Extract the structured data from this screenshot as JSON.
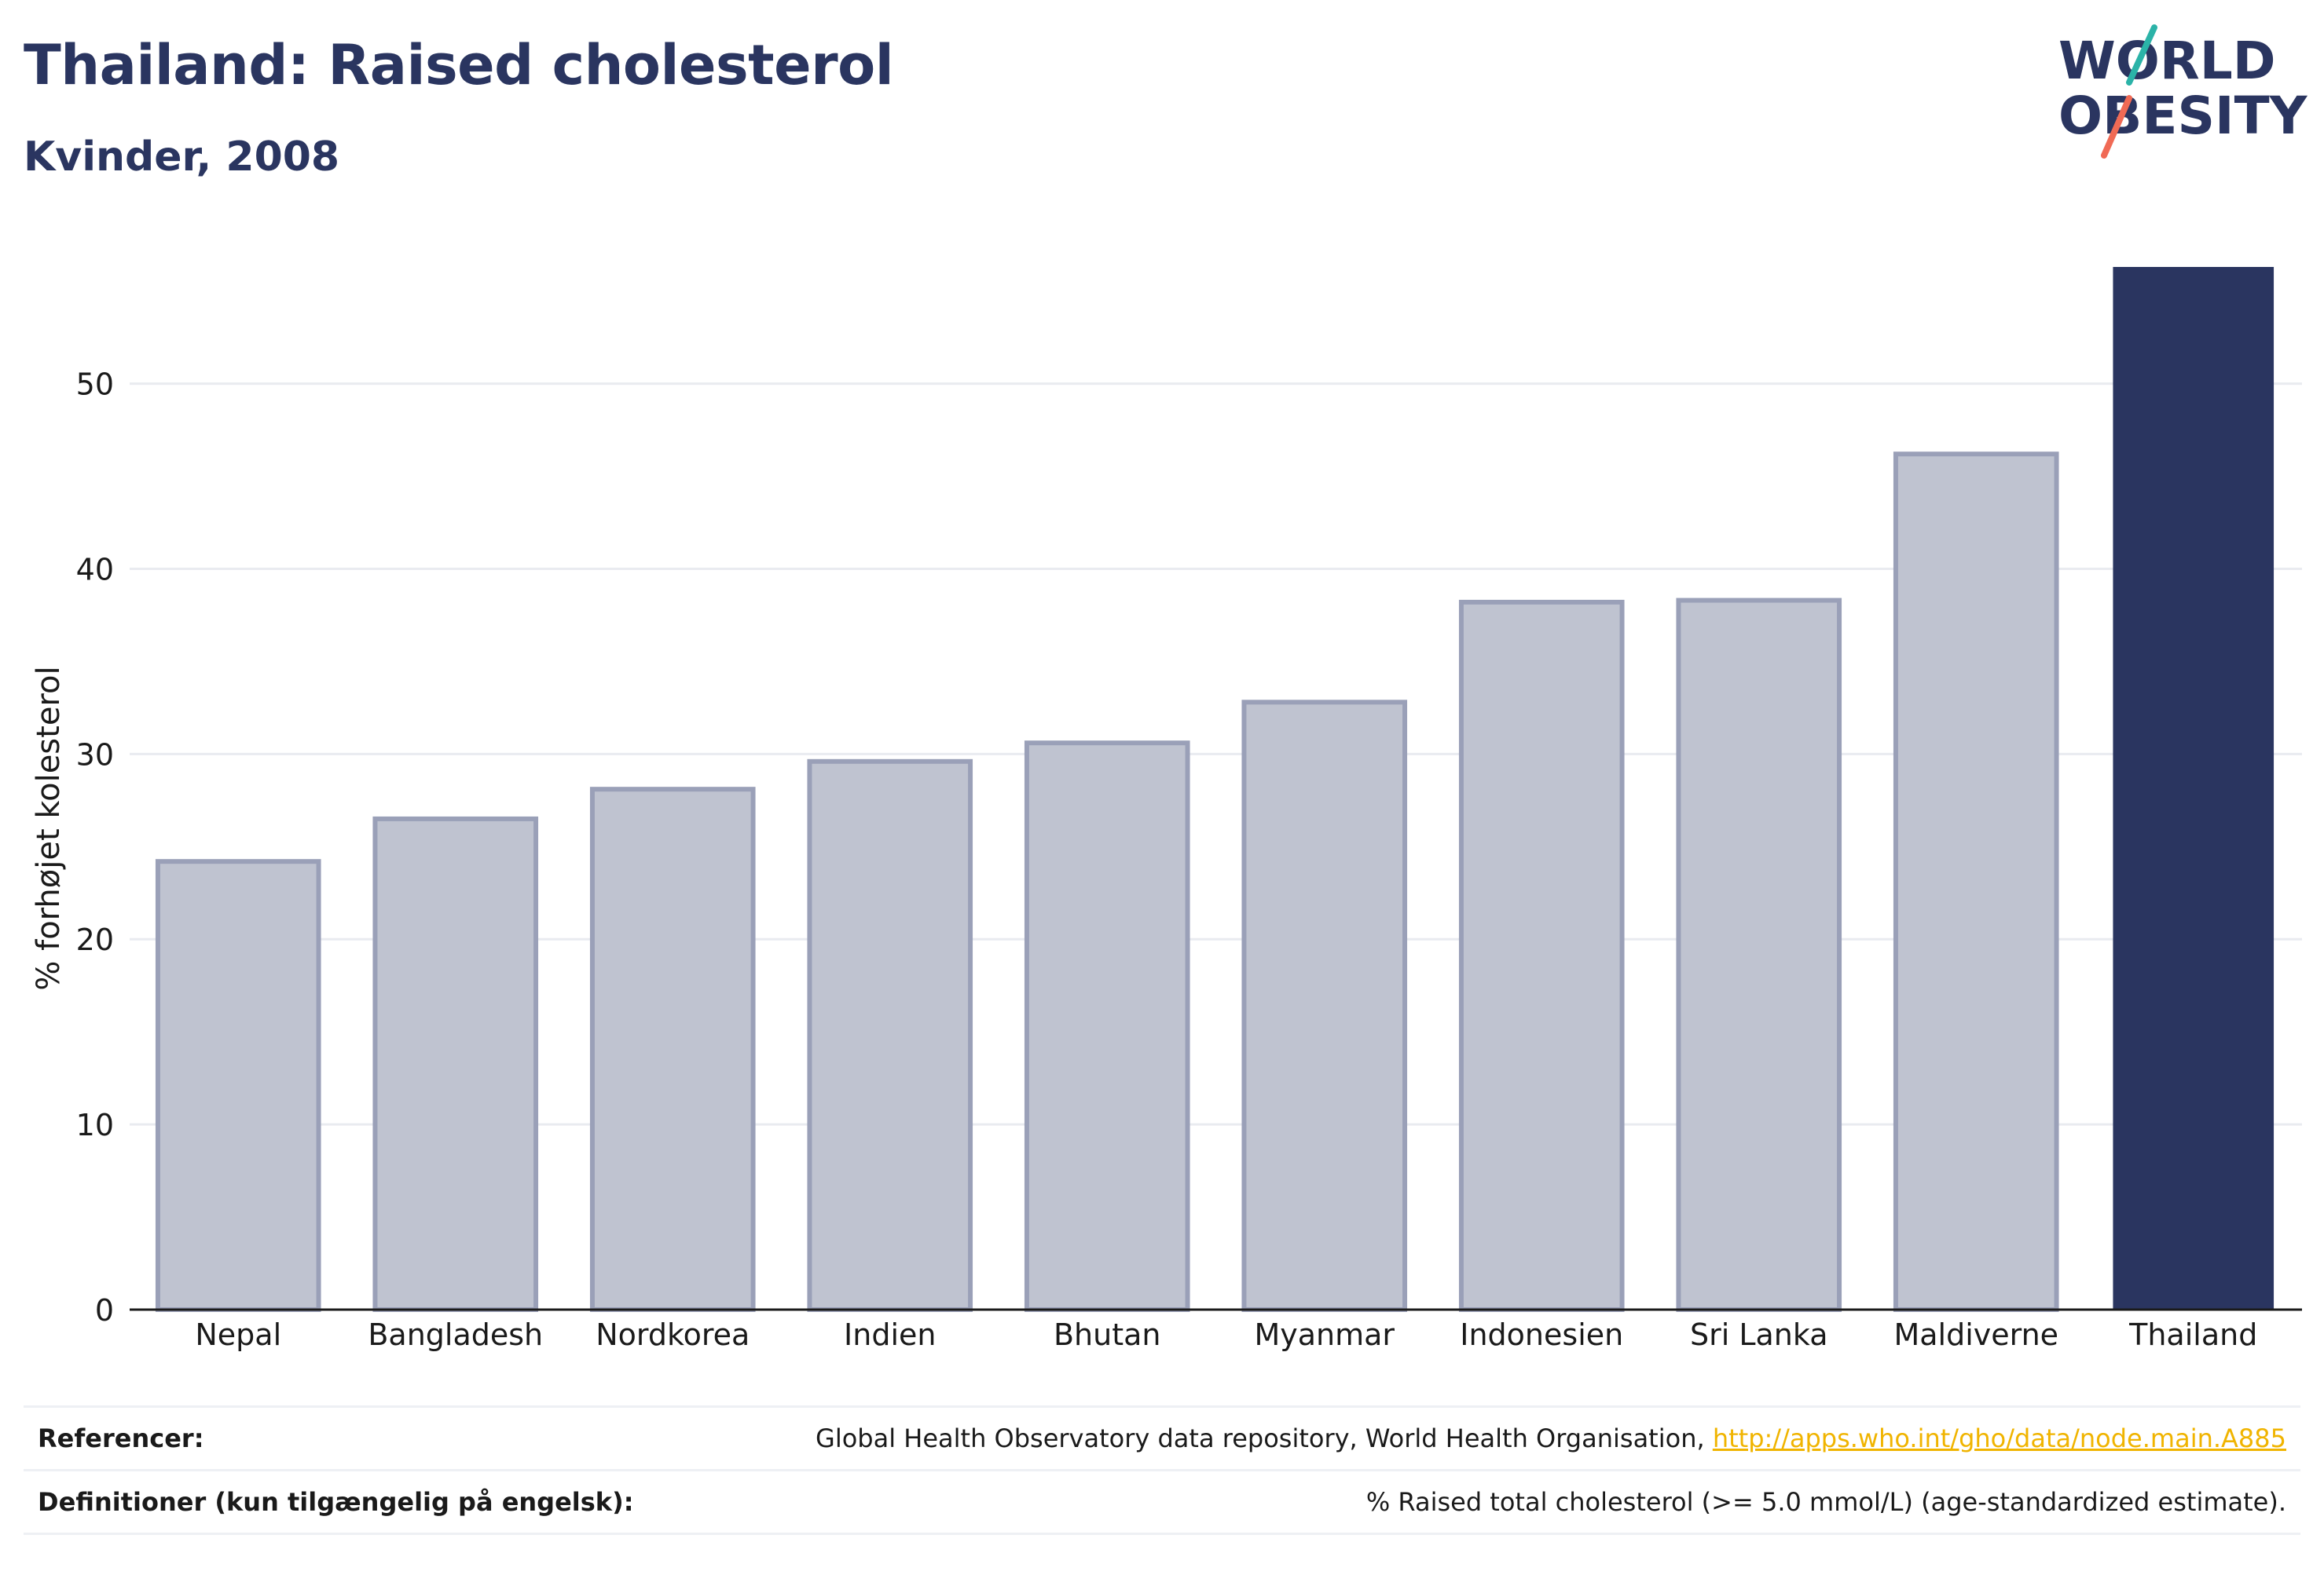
{
  "header": {
    "title": "Thailand: Raised cholesterol",
    "subtitle": "Kvinder, 2008"
  },
  "logo": {
    "line1": "WORLD",
    "line2": "OBESITY",
    "colors": {
      "text": "#2a3560",
      "slash_top": "#2bb3a8",
      "slash_bottom": "#f06a55"
    }
  },
  "chart_data": {
    "type": "bar",
    "categories": [
      "Nepal",
      "Bangladesh",
      "Nordkorea",
      "Indien",
      "Bhutan",
      "Myanmar",
      "Indonesien",
      "Sri Lanka",
      "Maldiverne",
      "Thailand"
    ],
    "values": [
      24.2,
      26.5,
      28.1,
      29.6,
      30.6,
      32.8,
      38.2,
      38.3,
      46.2,
      56.3
    ],
    "highlight": "Thailand",
    "ylabel": "% forhøjet kolesterol",
    "xlabel": "",
    "ylim": [
      0,
      56.3
    ],
    "yticks": [
      0,
      10,
      20,
      30,
      40,
      50
    ],
    "grid": true,
    "colors": {
      "bar": "#bfc3d0",
      "bar_edge": "#9aa0b8",
      "highlight": "#2a3560",
      "grid": "#e9ebf0"
    }
  },
  "footer": {
    "references_label": "Referencer:",
    "references_text": "Global Health Observatory data repository, World Health Organisation, ",
    "references_link": "http://apps.who.int/gho/data/node.main.A885",
    "definitions_label": "Definitioner (kun tilgængelig på engelsk):",
    "definitions_text": "% Raised total cholesterol (>= 5.0 mmol/L) (age-standardized estimate)."
  }
}
